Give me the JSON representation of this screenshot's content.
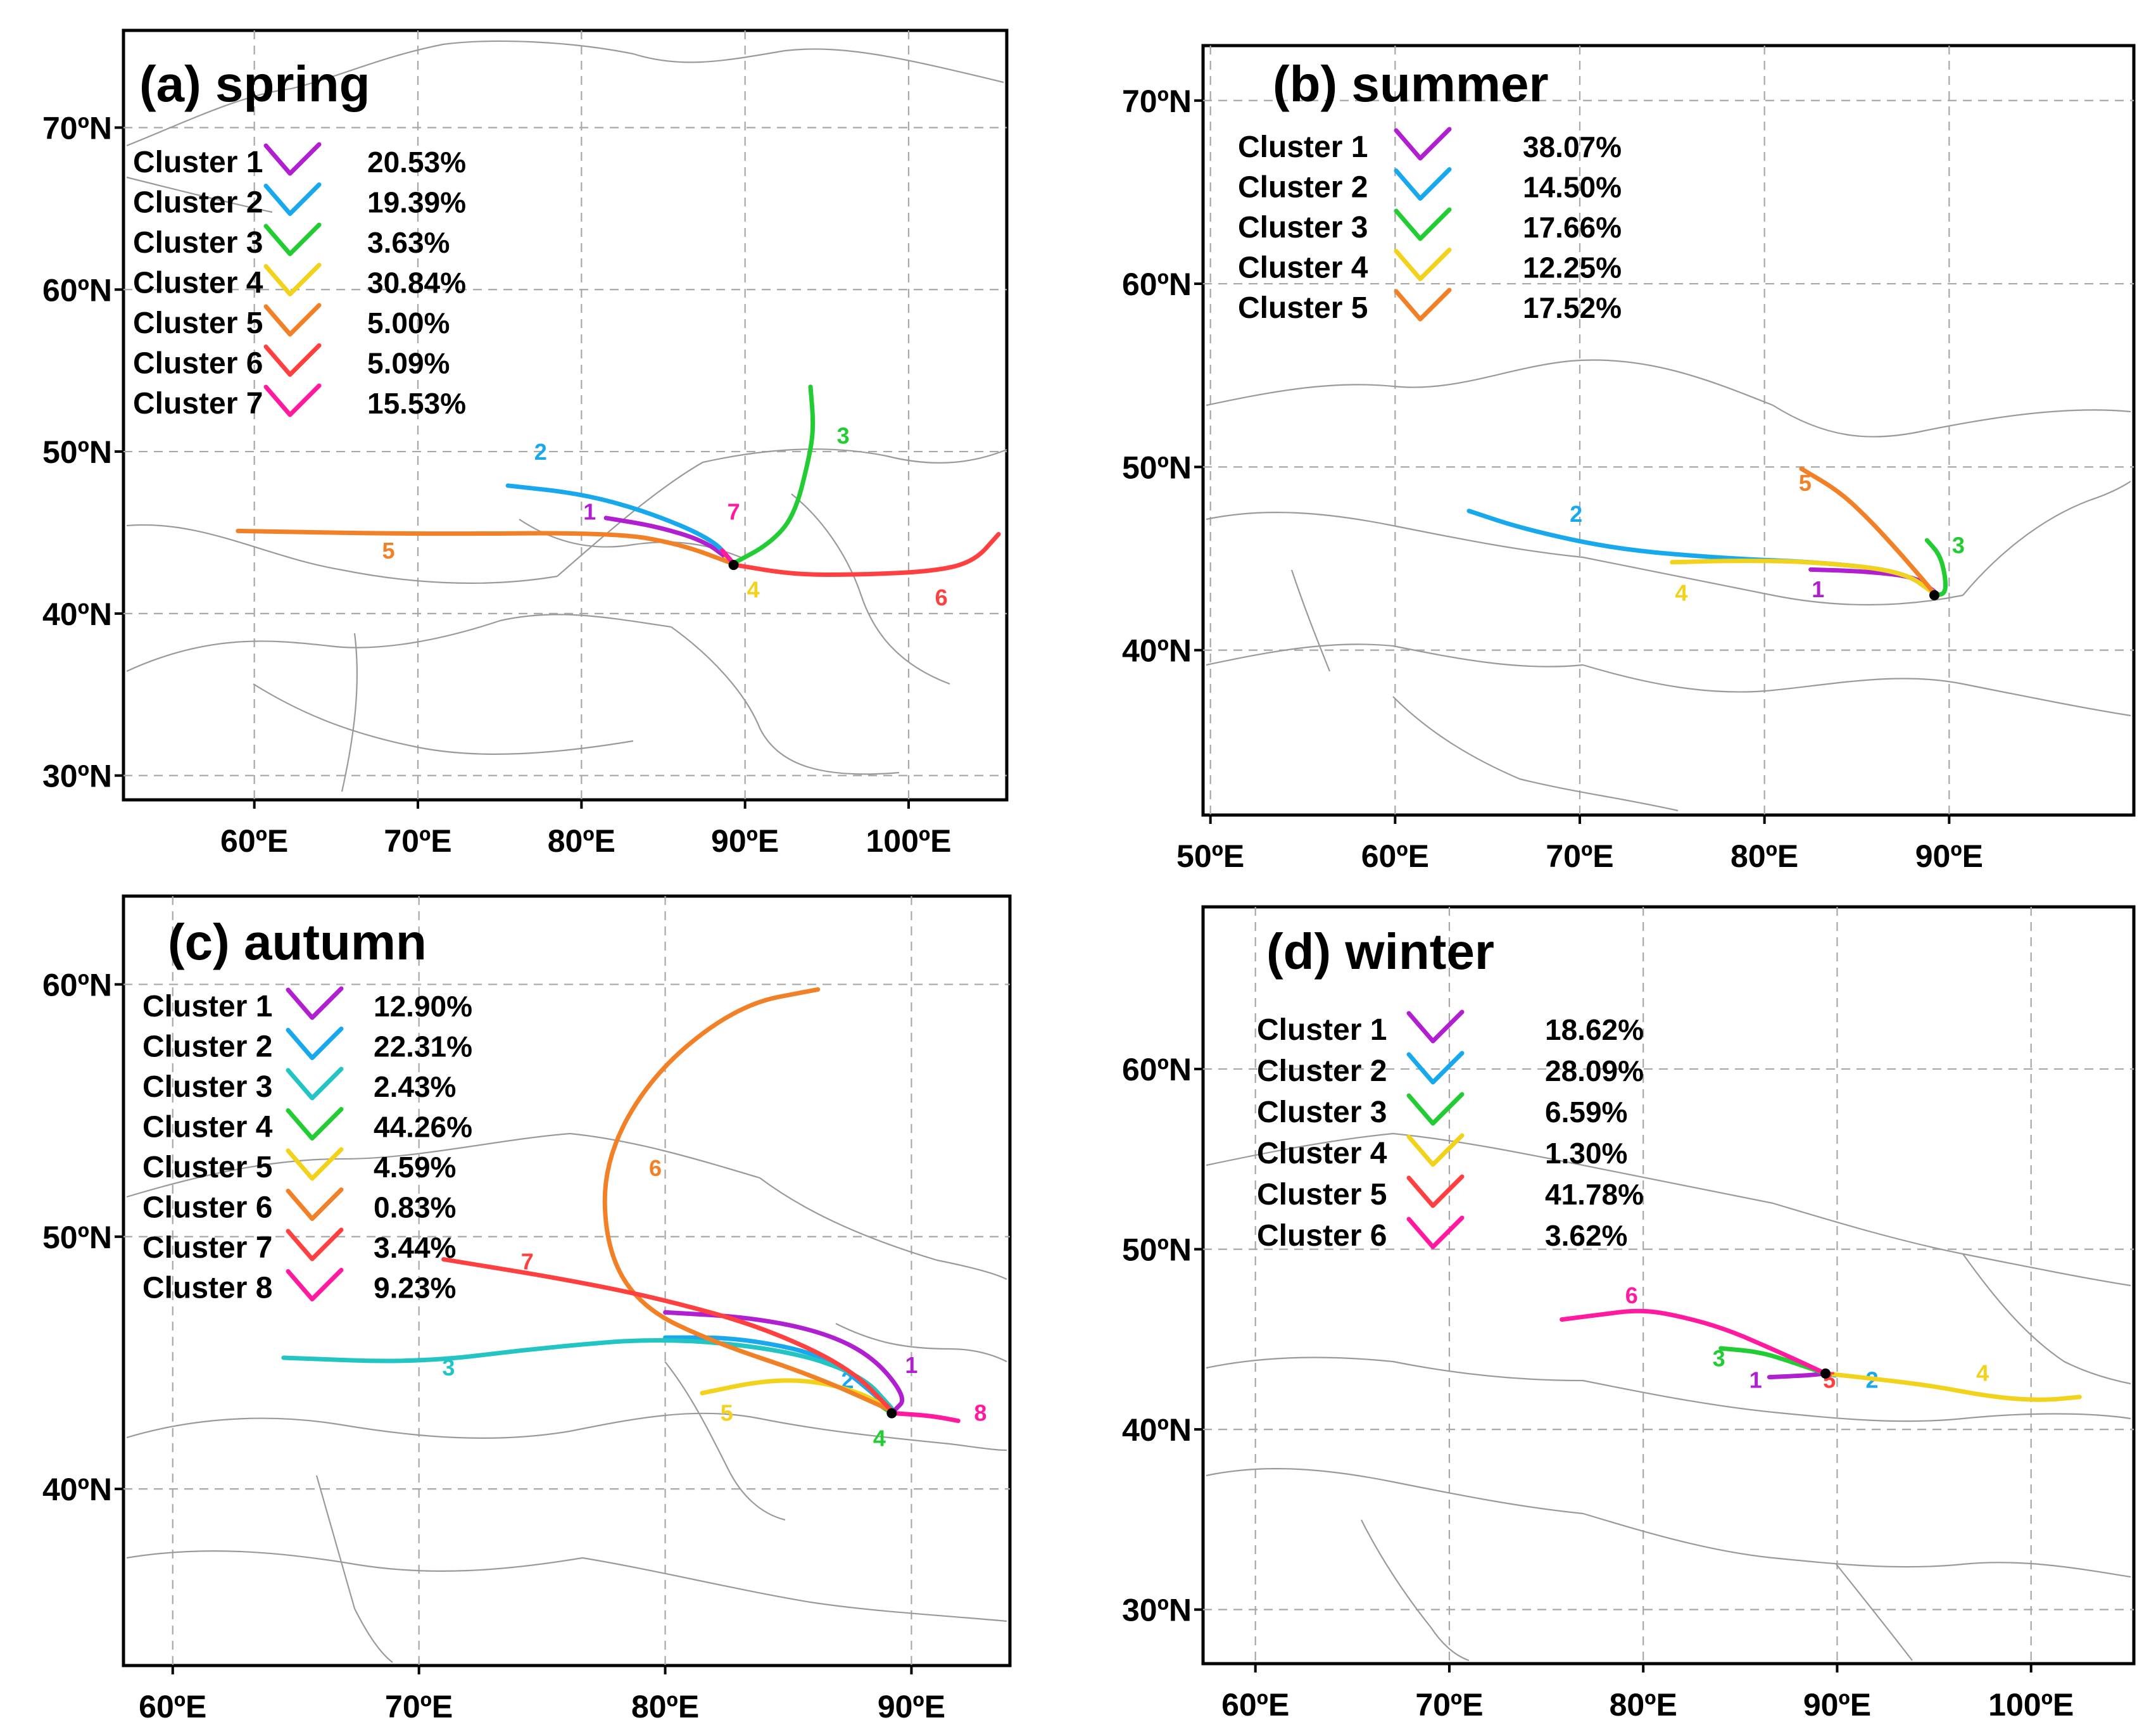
{
  "figure": {
    "panels": [
      {
        "id": "spring",
        "title": "(a) spring",
        "lon_range": [
          52,
          106
        ],
        "lat_range": [
          28.5,
          76
        ],
        "lon_ticks": [
          60,
          70,
          80,
          90,
          100
        ],
        "lat_ticks": [
          30,
          40,
          50,
          60,
          70
        ],
        "lon_labels": [
          "60ºE",
          "70ºE",
          "80ºE",
          "90ºE",
          "100ºE"
        ],
        "lat_labels": [
          "30ºN",
          "40ºN",
          "50ºN",
          "60ºN",
          "70ºN"
        ],
        "origin": [
          89.3,
          43.0
        ],
        "clusters": [
          {
            "name": "Cluster 1",
            "pct": "20.53%",
            "color": "#b01fd0",
            "label": "1",
            "label_at": [
              80.5,
              45.8
            ],
            "path": [
              [
                89.2,
                43.2
              ],
              [
                87.5,
                44.5
              ],
              [
                84.5,
                45.4
              ],
              [
                81.5,
                45.9
              ]
            ]
          },
          {
            "name": "Cluster 2",
            "pct": "19.39%",
            "color": "#18a8ee",
            "label": "2",
            "label_at": [
              77.5,
              49.5
            ],
            "path": [
              [
                89.2,
                43.2
              ],
              [
                88.0,
                44.6
              ],
              [
                84.0,
                46.3
              ],
              [
                80.0,
                47.4
              ],
              [
                75.5,
                47.9
              ]
            ]
          },
          {
            "name": "Cluster 3",
            "pct": "3.63%",
            "color": "#22cc33",
            "label": "3",
            "label_at": [
              96.0,
              50.5
            ],
            "path": [
              [
                89.3,
                43.1
              ],
              [
                91.5,
                44.3
              ],
              [
                93.0,
                46.0
              ],
              [
                93.9,
                49.5
              ],
              [
                94.2,
                51.5
              ],
              [
                94.0,
                54.0
              ]
            ]
          },
          {
            "name": "Cluster 4",
            "pct": "30.84%",
            "color": "#f2d21b",
            "label": "4",
            "label_at": [
              90.5,
              41.0
            ],
            "path": [
              [
                89.3,
                43.0
              ],
              [
                88.8,
                43.4
              ]
            ]
          },
          {
            "name": "Cluster 5",
            "pct": "5.00%",
            "color": "#f28026",
            "label": "5",
            "label_at": [
              68.2,
              43.4
            ],
            "path": [
              [
                89.2,
                43.1
              ],
              [
                86.0,
                44.3
              ],
              [
                82.0,
                45.0
              ],
              [
                70.0,
                44.9
              ],
              [
                59.0,
                45.1
              ]
            ]
          },
          {
            "name": "Cluster 6",
            "pct": "5.09%",
            "color": "#ff4040",
            "label": "6",
            "label_at": [
              102.0,
              40.5
            ],
            "path": [
              [
                89.4,
                43.0
              ],
              [
                93.0,
                42.4
              ],
              [
                97.0,
                42.4
              ],
              [
                101.5,
                42.6
              ],
              [
                104.0,
                43.2
              ],
              [
                105.5,
                44.9
              ]
            ]
          },
          {
            "name": "Cluster 7",
            "pct": "15.53%",
            "color": "#ff1aa0",
            "label": "7",
            "label_at": [
              89.3,
              45.8
            ],
            "path": [
              [
                89.2,
                43.2
              ],
              [
                88.6,
                43.9
              ]
            ]
          }
        ]
      },
      {
        "id": "summer",
        "title": "(b) summer",
        "lon_range": [
          49.6,
          100
        ],
        "lat_range": [
          31,
          73
        ],
        "lon_ticks": [
          50,
          60,
          70,
          80,
          90
        ],
        "lat_ticks": [
          40,
          50,
          60,
          70
        ],
        "lon_labels": [
          "50ºE",
          "60ºE",
          "70ºE",
          "80ºE",
          "90ºE"
        ],
        "lat_labels": [
          "40ºN",
          "50ºN",
          "60ºN",
          "70ºN"
        ],
        "origin": [
          89.2,
          43.0
        ],
        "clusters": [
          {
            "name": "Cluster 1",
            "pct": "38.07%",
            "color": "#b01fd0",
            "label": "1",
            "label_at": [
              82.9,
              42.9
            ],
            "path": [
              [
                89.2,
                43.2
              ],
              [
                88.2,
                44.0
              ],
              [
                85.5,
                44.3
              ],
              [
                82.5,
                44.4
              ]
            ]
          },
          {
            "name": "Cluster 2",
            "pct": "14.50%",
            "color": "#18a8ee",
            "label": "2",
            "label_at": [
              69.8,
              47.0
            ],
            "path": [
              [
                89.2,
                43.1
              ],
              [
                87.5,
                44.3
              ],
              [
                83.0,
                44.8
              ],
              [
                78.0,
                45.0
              ],
              [
                72.0,
                45.5
              ],
              [
                67.0,
                46.6
              ],
              [
                64.0,
                47.6
              ]
            ]
          },
          {
            "name": "Cluster 3",
            "pct": "17.66%",
            "color": "#22cc33",
            "label": "3",
            "label_at": [
              90.5,
              45.3
            ],
            "path": [
              [
                89.3,
                43.0
              ],
              [
                89.8,
                43.1
              ],
              [
                89.8,
                44.0
              ],
              [
                89.5,
                45.2
              ],
              [
                88.8,
                46.0
              ]
            ]
          },
          {
            "name": "Cluster 4",
            "pct": "12.25%",
            "color": "#f2d21b",
            "label": "4",
            "label_at": [
              75.5,
              42.7
            ],
            "path": [
              [
                89.2,
                43.1
              ],
              [
                87.5,
                44.3
              ],
              [
                83.0,
                44.8
              ],
              [
                79.0,
                44.9
              ],
              [
                75.0,
                44.8
              ]
            ]
          },
          {
            "name": "Cluster 5",
            "pct": "17.52%",
            "color": "#f28026",
            "label": "5",
            "label_at": [
              82.2,
              48.7
            ],
            "path": [
              [
                89.2,
                43.1
              ],
              [
                88.2,
                44.3
              ],
              [
                86.8,
                45.9
              ],
              [
                85.5,
                47.3
              ],
              [
                84.0,
                48.7
              ],
              [
                82.0,
                49.9
              ]
            ]
          }
        ]
      },
      {
        "id": "autumn",
        "title": "(c) autumn",
        "lon_range": [
          58,
          94
        ],
        "lat_range": [
          33,
          63.5
        ],
        "lon_ticks": [
          60,
          70,
          80,
          90
        ],
        "lat_ticks": [
          40,
          50,
          60
        ],
        "lon_labels": [
          "60ºE",
          "70ºE",
          "80ºE",
          "90ºE"
        ],
        "lat_labels": [
          "40ºN",
          "50ºN",
          "60ºN"
        ],
        "origin": [
          89.2,
          43.0
        ],
        "clusters": [
          {
            "name": "Cluster 1",
            "pct": "12.90%",
            "color": "#b01fd0",
            "label": "1",
            "label_at": [
              90.0,
              44.6
            ],
            "path": [
              [
                89.3,
                43.1
              ],
              [
                89.8,
                43.6
              ],
              [
                88.5,
                45.2
              ],
              [
                86.5,
                46.2
              ],
              [
                83.5,
                46.8
              ],
              [
                80.0,
                47.0
              ]
            ]
          },
          {
            "name": "Cluster 2",
            "pct": "22.31%",
            "color": "#18a8ee",
            "label": "2",
            "label_at": [
              87.4,
              44.0
            ],
            "path": [
              [
                89.2,
                43.1
              ],
              [
                88.2,
                44.0
              ],
              [
                86.5,
                45.3
              ],
              [
                83.0,
                46.0
              ],
              [
                80.0,
                46.0
              ]
            ]
          },
          {
            "name": "Cluster 3",
            "pct": "2.43%",
            "color": "#22c4c4",
            "label": "3",
            "label_at": [
              71.2,
              44.5
            ],
            "path": [
              [
                89.2,
                43.2
              ],
              [
                88.0,
                44.5
              ],
              [
                85.0,
                45.5
              ],
              [
                80.0,
                46.0
              ],
              [
                75.0,
                45.6
              ],
              [
                70.0,
                45.0
              ],
              [
                64.5,
                45.2
              ]
            ]
          },
          {
            "name": "Cluster 4",
            "pct": "44.26%",
            "color": "#22cc33",
            "label": "4",
            "label_at": [
              88.7,
              41.7
            ],
            "path": [
              [
                89.2,
                43.0
              ],
              [
                88.6,
                43.4
              ]
            ]
          },
          {
            "name": "Cluster 5",
            "pct": "4.59%",
            "color": "#f2d21b",
            "label": "5",
            "label_at": [
              82.5,
              42.7
            ],
            "path": [
              [
                89.2,
                43.1
              ],
              [
                88.0,
                43.8
              ],
              [
                86.0,
                44.3
              ],
              [
                84.0,
                44.3
              ],
              [
                81.5,
                43.8
              ]
            ]
          },
          {
            "name": "Cluster 6",
            "pct": "0.83%",
            "color": "#f28026",
            "label": "6",
            "label_at": [
              79.6,
              52.4
            ],
            "path": [
              [
                89.2,
                43.1
              ],
              [
                86.0,
                44.5
              ],
              [
                82.0,
                45.8
              ],
              [
                79.0,
                47.2
              ],
              [
                77.6,
                49.5
              ],
              [
                77.5,
                53.0
              ],
              [
                79.5,
                56.5
              ],
              [
                83.0,
                59.2
              ],
              [
                86.2,
                59.8
              ]
            ]
          },
          {
            "name": "Cluster 7",
            "pct": "3.44%",
            "color": "#ff4040",
            "label": "7",
            "label_at": [
              74.4,
              48.7
            ],
            "path": [
              [
                89.2,
                43.1
              ],
              [
                87.5,
                44.8
              ],
              [
                84.0,
                46.4
              ],
              [
                80.0,
                47.5
              ],
              [
                76.0,
                48.3
              ],
              [
                71.0,
                49.1
              ]
            ]
          },
          {
            "name": "Cluster 8",
            "pct": "9.23%",
            "color": "#ff1aa0",
            "label": "8",
            "label_at": [
              92.8,
              42.7
            ],
            "path": [
              [
                89.3,
                43.0
              ],
              [
                90.8,
                42.9
              ],
              [
                91.9,
                42.7
              ]
            ]
          }
        ]
      },
      {
        "id": "winter",
        "title": "(d) winter",
        "lon_range": [
          57.3,
          105.3
        ],
        "lat_range": [
          27,
          69
        ],
        "lon_ticks": [
          60,
          70,
          80,
          90,
          100
        ],
        "lat_ticks": [
          30,
          40,
          50,
          60
        ],
        "lon_labels": [
          "60ºE",
          "70ºE",
          "80ºE",
          "90ºE",
          "100ºE"
        ],
        "lat_labels": [
          "30ºN",
          "40ºN",
          "50ºN",
          "60ºN"
        ],
        "origin": [
          89.4,
          43.1
        ],
        "clusters": [
          {
            "name": "Cluster 1",
            "pct": "18.62%",
            "color": "#b01fd0",
            "label": "1",
            "label_at": [
              85.8,
              42.3
            ],
            "path": [
              [
                89.4,
                43.1
              ],
              [
                88.5,
                43.0
              ],
              [
                86.5,
                42.9
              ]
            ]
          },
          {
            "name": "Cluster 2",
            "pct": "28.09%",
            "color": "#18a8ee",
            "label": "2",
            "label_at": [
              91.8,
              42.3
            ],
            "path": [
              [
                89.4,
                43.1
              ],
              [
                89.9,
                43.0
              ]
            ]
          },
          {
            "name": "Cluster 3",
            "pct": "6.59%",
            "color": "#22cc33",
            "label": "3",
            "label_at": [
              83.9,
              43.5
            ],
            "path": [
              [
                89.4,
                43.1
              ],
              [
                87.5,
                43.8
              ],
              [
                86.0,
                44.3
              ],
              [
                84.0,
                44.5
              ]
            ]
          },
          {
            "name": "Cluster 4",
            "pct": "1.30%",
            "color": "#f2d21b",
            "label": "4",
            "label_at": [
              97.5,
              42.7
            ],
            "path": [
              [
                89.4,
                43.1
              ],
              [
                92.0,
                42.8
              ],
              [
                95.0,
                42.4
              ],
              [
                98.0,
                41.8
              ],
              [
                100.5,
                41.6
              ],
              [
                102.5,
                41.8
              ]
            ]
          },
          {
            "name": "Cluster 5",
            "pct": "41.78%",
            "color": "#ff4040",
            "label": "5",
            "label_at": [
              89.6,
              42.3
            ],
            "path": [
              [
                89.4,
                43.1
              ],
              [
                89.6,
                43.0
              ]
            ]
          },
          {
            "name": "Cluster 6",
            "pct": "3.62%",
            "color": "#ff1aa0",
            "label": "6",
            "label_at": [
              79.4,
              47.0
            ],
            "path": [
              [
                89.4,
                43.1
              ],
              [
                87.0,
                44.3
              ],
              [
                84.0,
                45.7
              ],
              [
                81.0,
                46.5
              ],
              [
                79.5,
                46.6
              ],
              [
                78.0,
                46.4
              ],
              [
                75.8,
                46.1
              ]
            ]
          }
        ]
      }
    ]
  }
}
